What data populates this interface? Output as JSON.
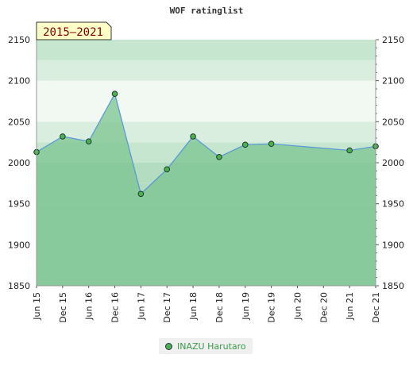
{
  "chart_data": {
    "type": "area",
    "title": "WOF ratinglist",
    "period_badge": "2015–2021",
    "ylim": [
      1850,
      2150
    ],
    "y_ticks": [
      "2150",
      "2100",
      "2050",
      "2000",
      "1950",
      "1900",
      "1850"
    ],
    "x_ticks": [
      "Jun 15",
      "Dec 15",
      "Jun 16",
      "Dec 16",
      "Jun 17",
      "Dec 17",
      "Jun 18",
      "Dec 18",
      "Jun 19",
      "Dec 19",
      "Jun 20",
      "Dec 20",
      "Jun 21",
      "Dec 21"
    ],
    "series": [
      {
        "name": "INAZU Harutaro",
        "x": [
          "Jun 15",
          "Dec 15",
          "Jun 16",
          "Dec 16",
          "Jun 17",
          "Dec 17",
          "Jun 18",
          "Dec 18",
          "Jun 19",
          "Dec 19",
          "Jun 21",
          "Dec 21"
        ],
        "values": [
          2013,
          2032,
          2026,
          2084,
          1962,
          1992,
          2032,
          2007,
          2022,
          2023,
          2015,
          2020
        ]
      }
    ],
    "grid": true,
    "legend_position": "bottom-center",
    "colors": {
      "area": "#7bc48f",
      "line": "#5b9bd5",
      "marker": "#4caf50"
    }
  }
}
